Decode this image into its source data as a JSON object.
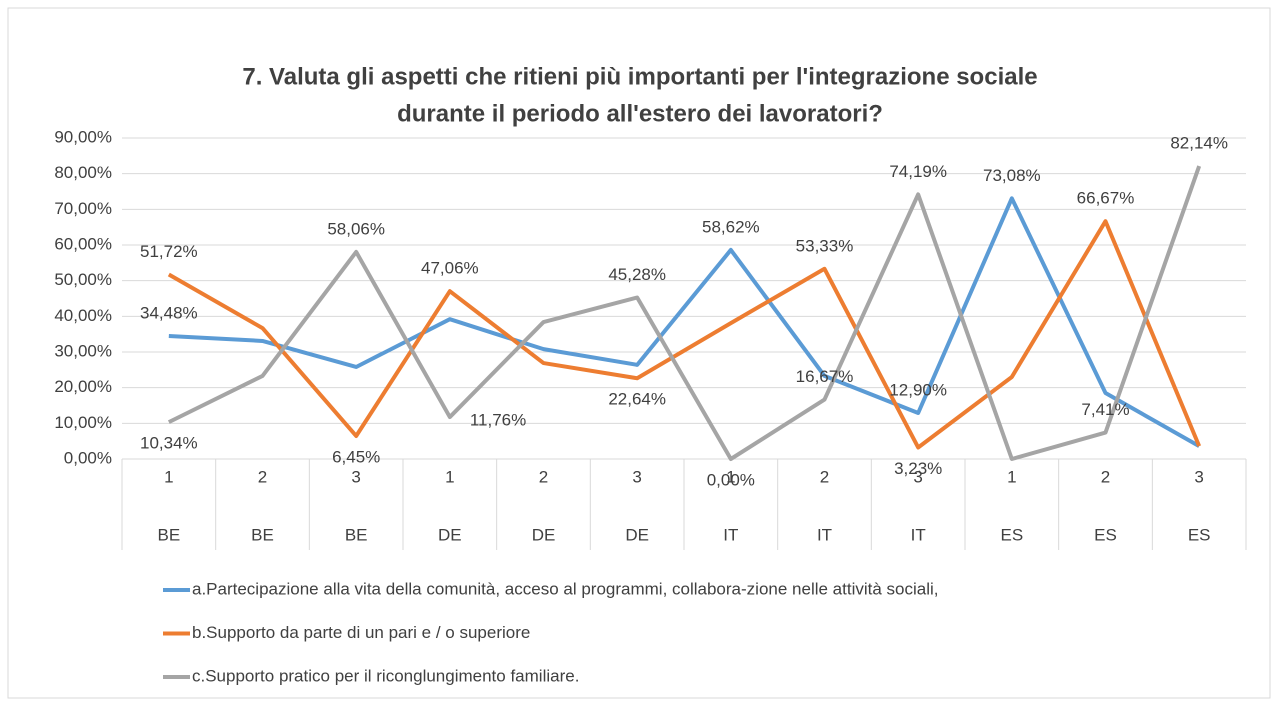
{
  "chart_data": {
    "type": "line",
    "title_lines": [
      "7. Valuta gli aspetti che ritieni più importanti per l'integrazione sociale",
      "durante il periodo all'estero dei lavoratori?"
    ],
    "categories": [
      "1",
      "2",
      "3",
      "1",
      "2",
      "3",
      "1",
      "2",
      "3",
      "1",
      "2",
      "3"
    ],
    "category_groups": [
      "BE",
      "BE",
      "BE",
      "DE",
      "DE",
      "DE",
      "IT",
      "IT",
      "IT",
      "ES",
      "ES",
      "ES"
    ],
    "ylim": [
      0,
      90
    ],
    "yticks": [
      {
        "value": 0,
        "label": "0,00%"
      },
      {
        "value": 10,
        "label": "10,00%"
      },
      {
        "value": 20,
        "label": "20,00%"
      },
      {
        "value": 30,
        "label": "30,00%"
      },
      {
        "value": 40,
        "label": "40,00%"
      },
      {
        "value": 50,
        "label": "50,00%"
      },
      {
        "value": 60,
        "label": "60,00%"
      },
      {
        "value": 70,
        "label": "70,00%"
      },
      {
        "value": 80,
        "label": "80,00%"
      },
      {
        "value": 90,
        "label": "90,00%"
      }
    ],
    "grid": true,
    "legend": "bottom",
    "series": [
      {
        "name": "a.Partecipazione alla vita della comunità, acceso al programmi, collabora-zione nelle attività sociali,",
        "color": "#5b9bd5",
        "values": [
          34.48,
          33.1,
          25.8,
          39.2,
          30.8,
          26.4,
          58.62,
          23.3,
          12.9,
          73.08,
          18.5,
          3.6
        ],
        "value_labels": [
          "34,48%",
          null,
          null,
          null,
          null,
          null,
          "58,62%",
          null,
          "12,90%",
          "73,08%",
          null,
          null
        ]
      },
      {
        "name": "b.Supporto da parte di un pari e / o superiore",
        "color": "#ed7d31",
        "values": [
          51.72,
          36.7,
          6.45,
          47.06,
          26.9,
          22.64,
          38.1,
          53.33,
          3.23,
          23.0,
          66.67,
          3.6
        ],
        "value_labels": [
          "51,72%",
          null,
          "6,45%",
          "47,06%",
          null,
          "22,64%",
          null,
          "53,33%",
          "3,23%",
          null,
          "66,67%",
          null
        ]
      },
      {
        "name": "c.Supporto pratico per il riconglungimento familiare.",
        "color": "#a5a5a5",
        "values": [
          10.34,
          23.3,
          58.06,
          11.76,
          38.4,
          45.28,
          0.0,
          16.67,
          74.19,
          0,
          7.41,
          82.14
        ],
        "value_labels": [
          "10,34%",
          null,
          "58,06%",
          "11,76%",
          null,
          "45,28%",
          "0,00%",
          "16,67%",
          "74,19%",
          null,
          "7,41%",
          "82,14%"
        ]
      }
    ]
  }
}
